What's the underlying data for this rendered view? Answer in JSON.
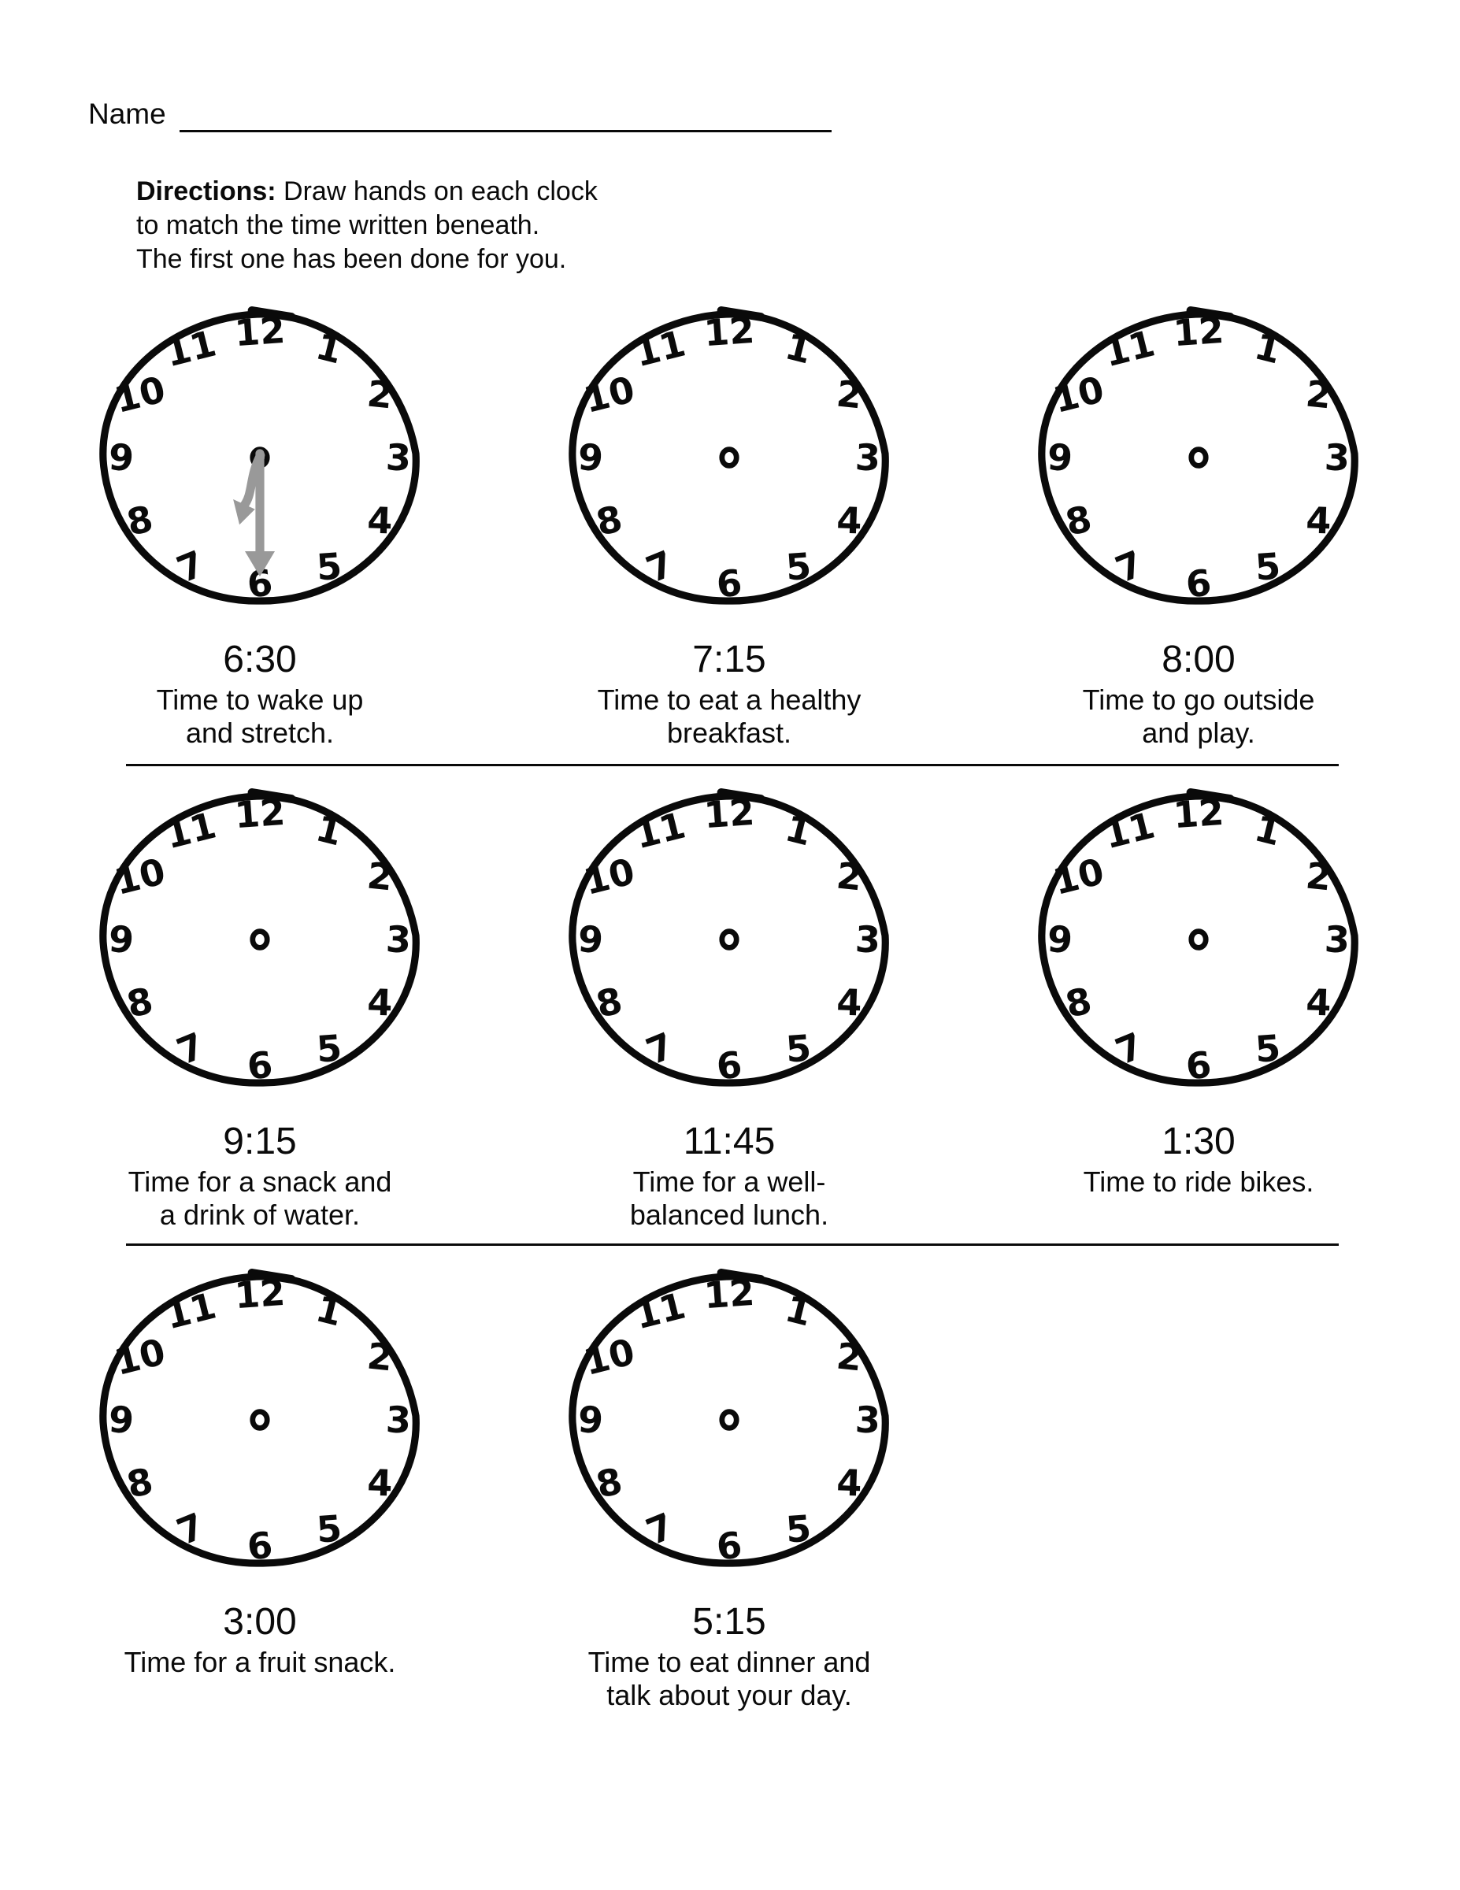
{
  "page": {
    "background": "#ffffff",
    "ink": "#0a0a0a"
  },
  "header": {
    "name_label": "Name"
  },
  "directions": {
    "label": "Directions:",
    "lines": [
      "Draw hands on each clock",
      "to match the time written beneath.",
      "The first one has been done for you."
    ]
  },
  "clock_face": {
    "numerals": [
      "12",
      "1",
      "2",
      "3",
      "4",
      "5",
      "6",
      "7",
      "8",
      "9",
      "10",
      "11"
    ],
    "center_glyph": "o",
    "rim_color": "#0a0a0a",
    "hand_color": "#999999"
  },
  "clocks": [
    {
      "time": "6:30",
      "caption": [
        "Time to wake up",
        "and stretch."
      ],
      "hands": {
        "hour_deg": 195,
        "minute_deg": 180
      }
    },
    {
      "time": "7:15",
      "caption": [
        "Time to eat a healthy",
        "breakfast."
      ],
      "hands": null
    },
    {
      "time": "8:00",
      "caption": [
        "Time to go outside",
        "and play."
      ],
      "hands": null
    },
    {
      "time": "9:15",
      "caption": [
        "Time for a snack and",
        "a drink of water."
      ],
      "hands": null
    },
    {
      "time": "11:45",
      "caption": [
        "Time for a well-",
        "balanced lunch."
      ],
      "hands": null
    },
    {
      "time": "1:30",
      "caption": [
        "Time to ride bikes."
      ],
      "hands": null
    },
    {
      "time": "3:00",
      "caption": [
        "Time for a fruit snack."
      ],
      "hands": null
    },
    {
      "time": "5:15",
      "caption": [
        "Time to eat dinner and",
        "talk about your day."
      ],
      "hands": null
    }
  ]
}
